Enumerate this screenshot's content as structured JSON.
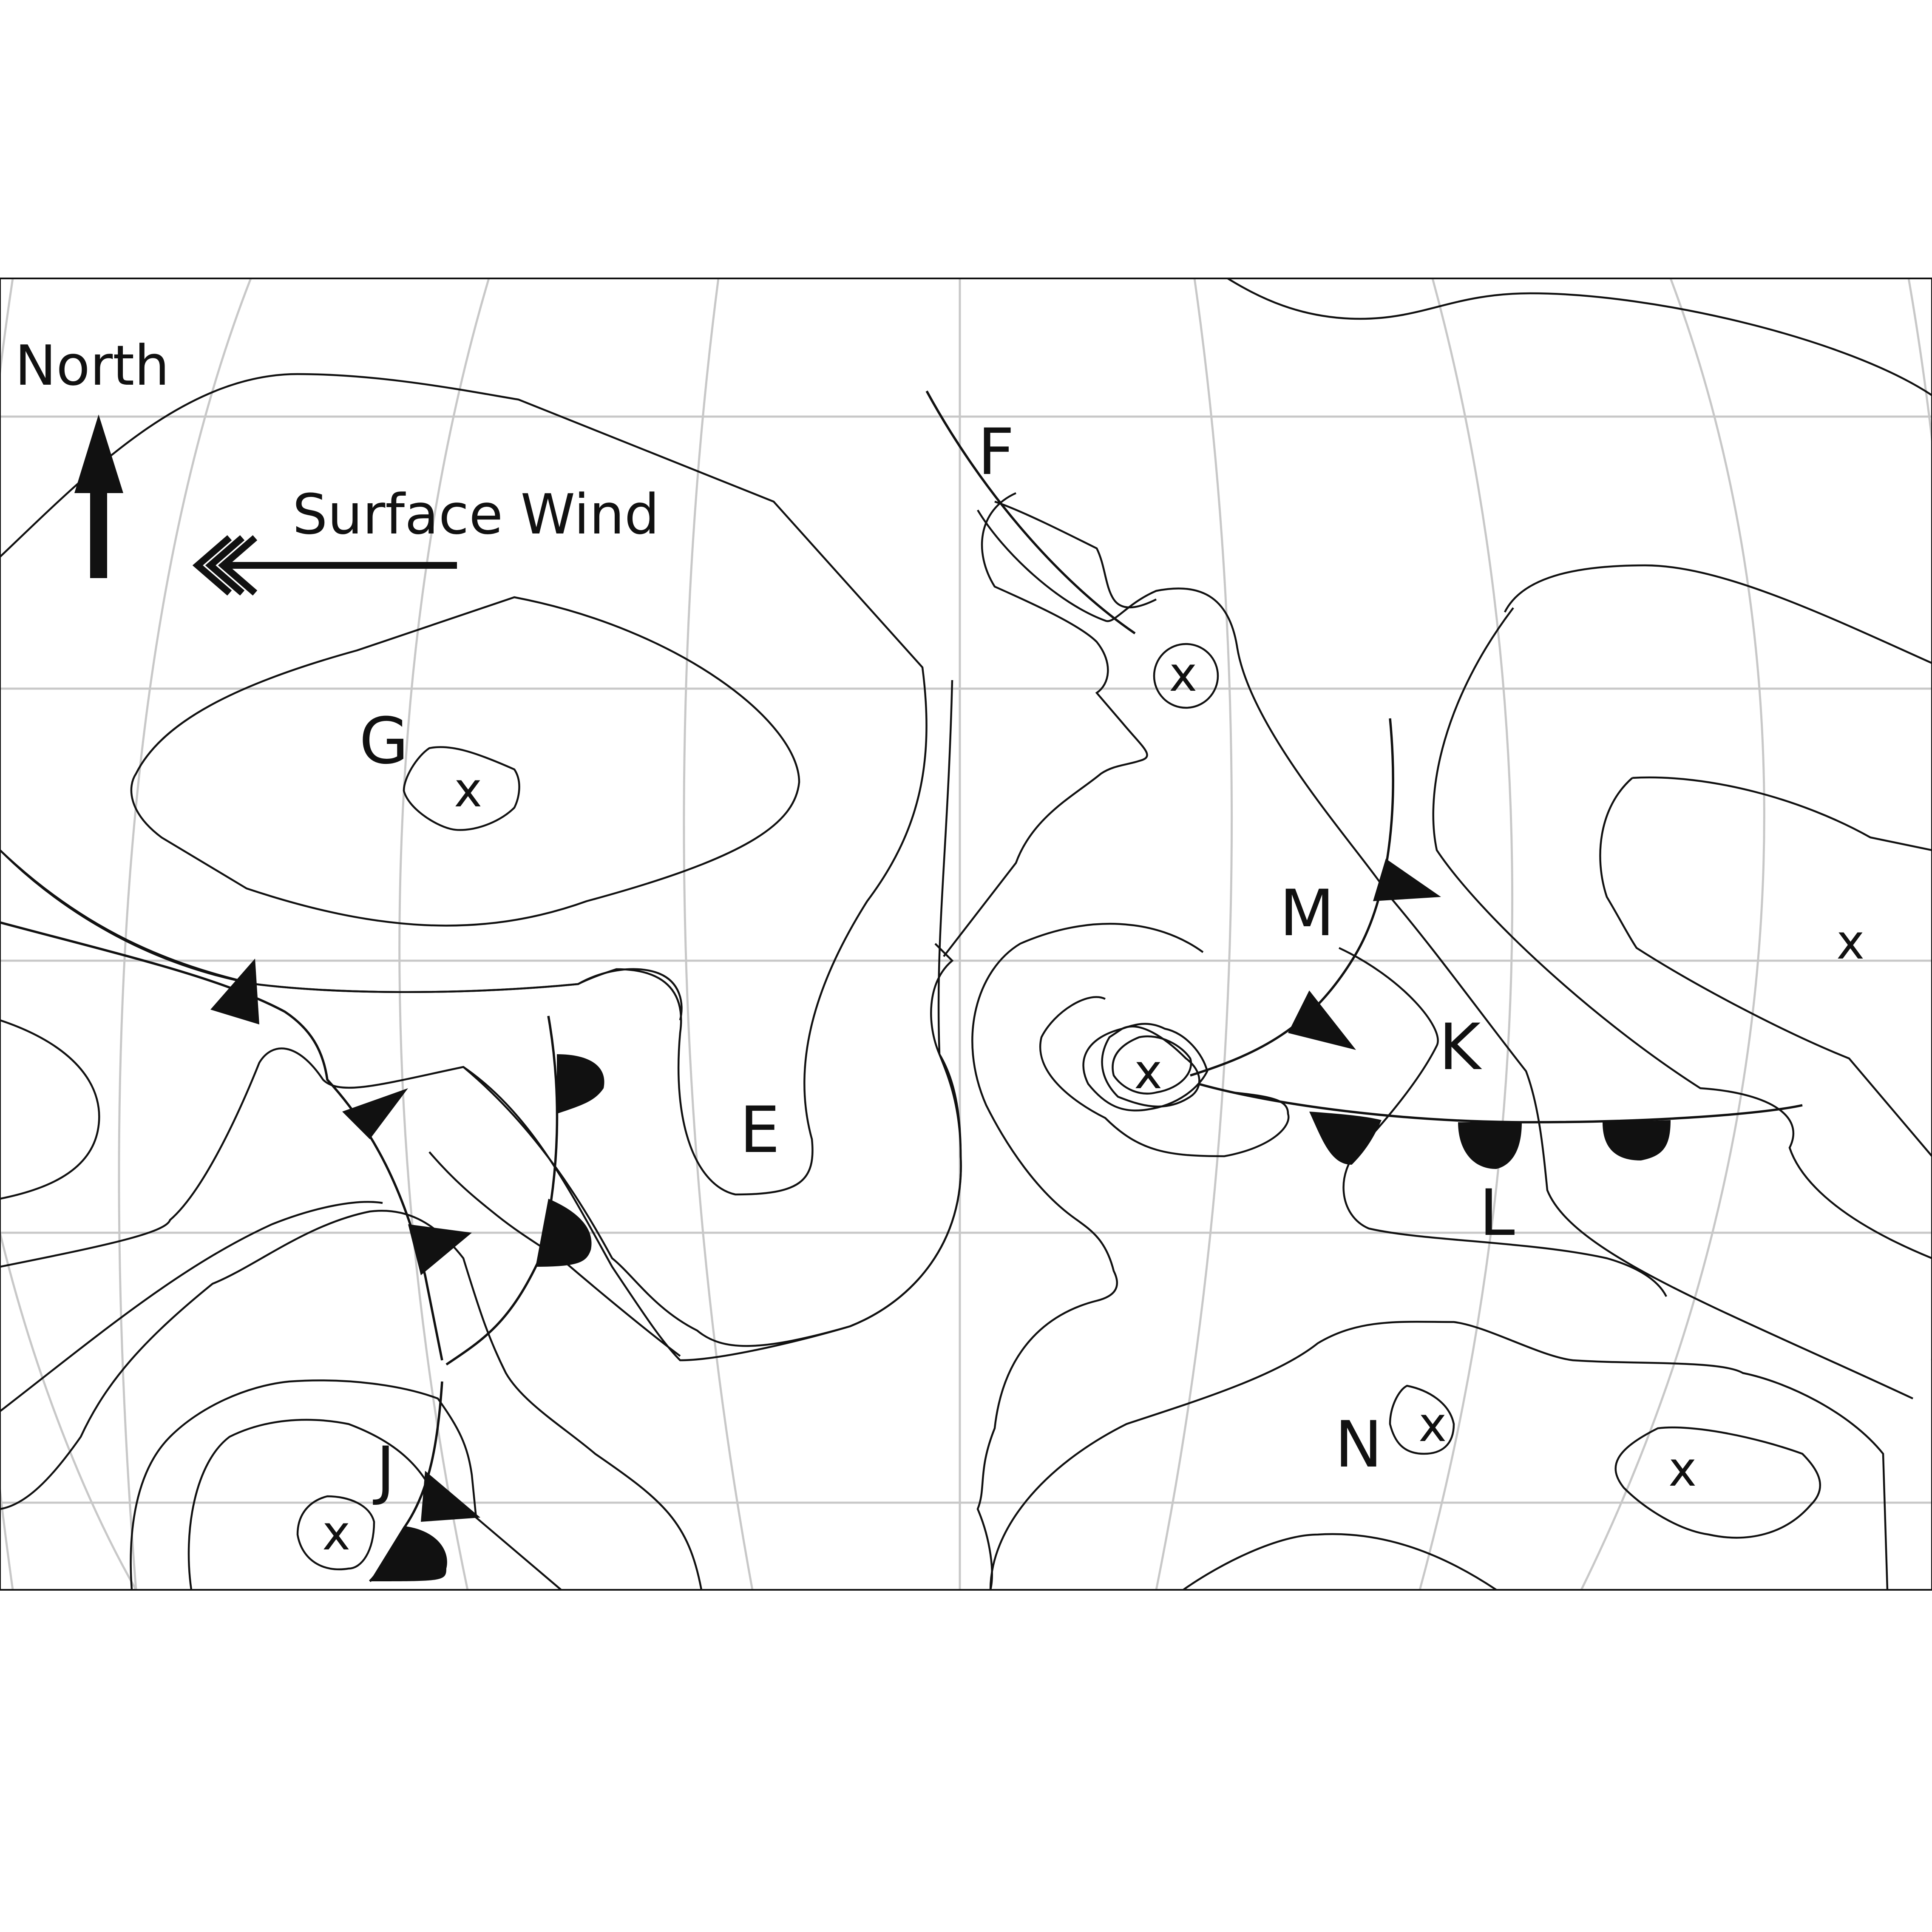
{
  "legend": {
    "north_label": "North",
    "wind_label": "Surface Wind"
  },
  "map_labels": {
    "E": "E",
    "F": "F",
    "G": "G",
    "J": "J",
    "K": "K",
    "L": "L",
    "M": "M",
    "N": "N"
  },
  "markers": {
    "x": "x"
  },
  "icons": [
    "north-arrow-icon",
    "wind-arrow-icon"
  ]
}
